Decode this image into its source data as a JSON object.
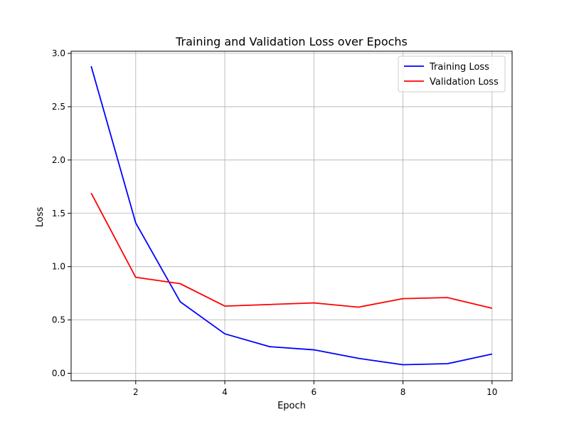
{
  "chart_data": {
    "type": "line",
    "title": "Training and Validation Loss over Epochs",
    "xlabel": "Epoch",
    "ylabel": "Loss",
    "x": [
      1,
      2,
      3,
      4,
      5,
      6,
      7,
      8,
      9,
      10
    ],
    "xlim": [
      0.55,
      10.45
    ],
    "ylim": [
      -0.07,
      3.02
    ],
    "xticks": [
      2,
      4,
      6,
      8,
      10
    ],
    "yticks": [
      0.0,
      0.5,
      1.0,
      1.5,
      2.0,
      2.5,
      3.0
    ],
    "xtick_labels": [
      "2",
      "4",
      "6",
      "8",
      "10"
    ],
    "ytick_labels": [
      "0.0",
      "0.5",
      "1.0",
      "1.5",
      "2.0",
      "2.5",
      "3.0"
    ],
    "grid": true,
    "legend_position": "top-right",
    "series": [
      {
        "name": "Training Loss",
        "color": "#0000ff",
        "values": [
          2.88,
          1.41,
          0.67,
          0.37,
          0.25,
          0.22,
          0.14,
          0.08,
          0.09,
          0.18
        ]
      },
      {
        "name": "Validation Loss",
        "color": "#ff0000",
        "values": [
          1.69,
          0.9,
          0.84,
          0.63,
          0.645,
          0.66,
          0.62,
          0.7,
          0.71,
          0.61
        ]
      }
    ]
  }
}
